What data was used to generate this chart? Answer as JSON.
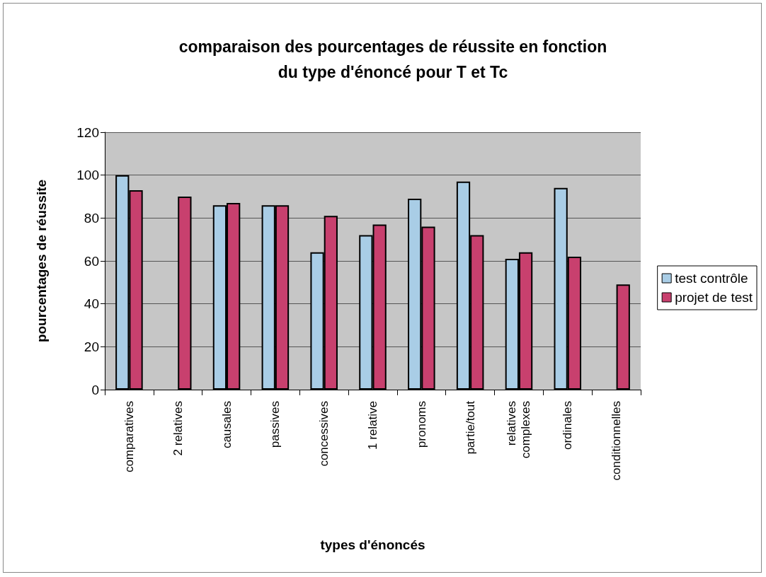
{
  "chart_data": {
    "type": "bar",
    "title": "comparaison des pourcentages de réussite en fonction du type d'énoncé pour T et Tc",
    "xlabel": "types d'énoncés",
    "ylabel": "pourcentages de réussite",
    "categories": [
      "comparatives",
      "2 relatives",
      "causales",
      "passives",
      "concessives",
      "1 relative",
      "pronoms",
      "partie/tout",
      "relatives complexes",
      "ordinales",
      "conditionnelles"
    ],
    "series": [
      {
        "name": "test contrôle",
        "color": "#a9cde6",
        "values": [
          100,
          null,
          86,
          86,
          64,
          72,
          89,
          97,
          61,
          94,
          null
        ]
      },
      {
        "name": "projet de test",
        "color": "#c8406e",
        "values": [
          93,
          90,
          87,
          86,
          81,
          77,
          76,
          72,
          64,
          62,
          49
        ]
      }
    ],
    "ylim": [
      0,
      120
    ],
    "yticks": [
      0,
      20,
      40,
      60,
      80,
      100,
      120
    ],
    "grid": "y",
    "legend": "right"
  }
}
